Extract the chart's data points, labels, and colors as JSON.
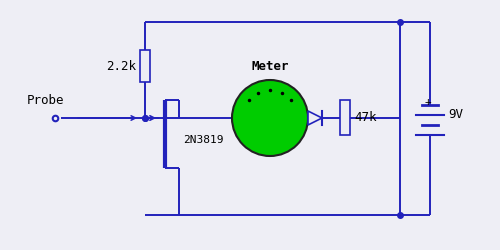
{
  "bg_color": "#eeeef5",
  "wire_color": "#2222bb",
  "text_color": "#000000",
  "meter_fill": "#00cc00",
  "meter_border": "#222222",
  "res22_label": "2.2k",
  "res47_label": "47k",
  "meter_label": "Meter",
  "transistor_label": "2N3819",
  "probe_label": "Probe",
  "battery_label": "9V",
  "lw": 1.4
}
